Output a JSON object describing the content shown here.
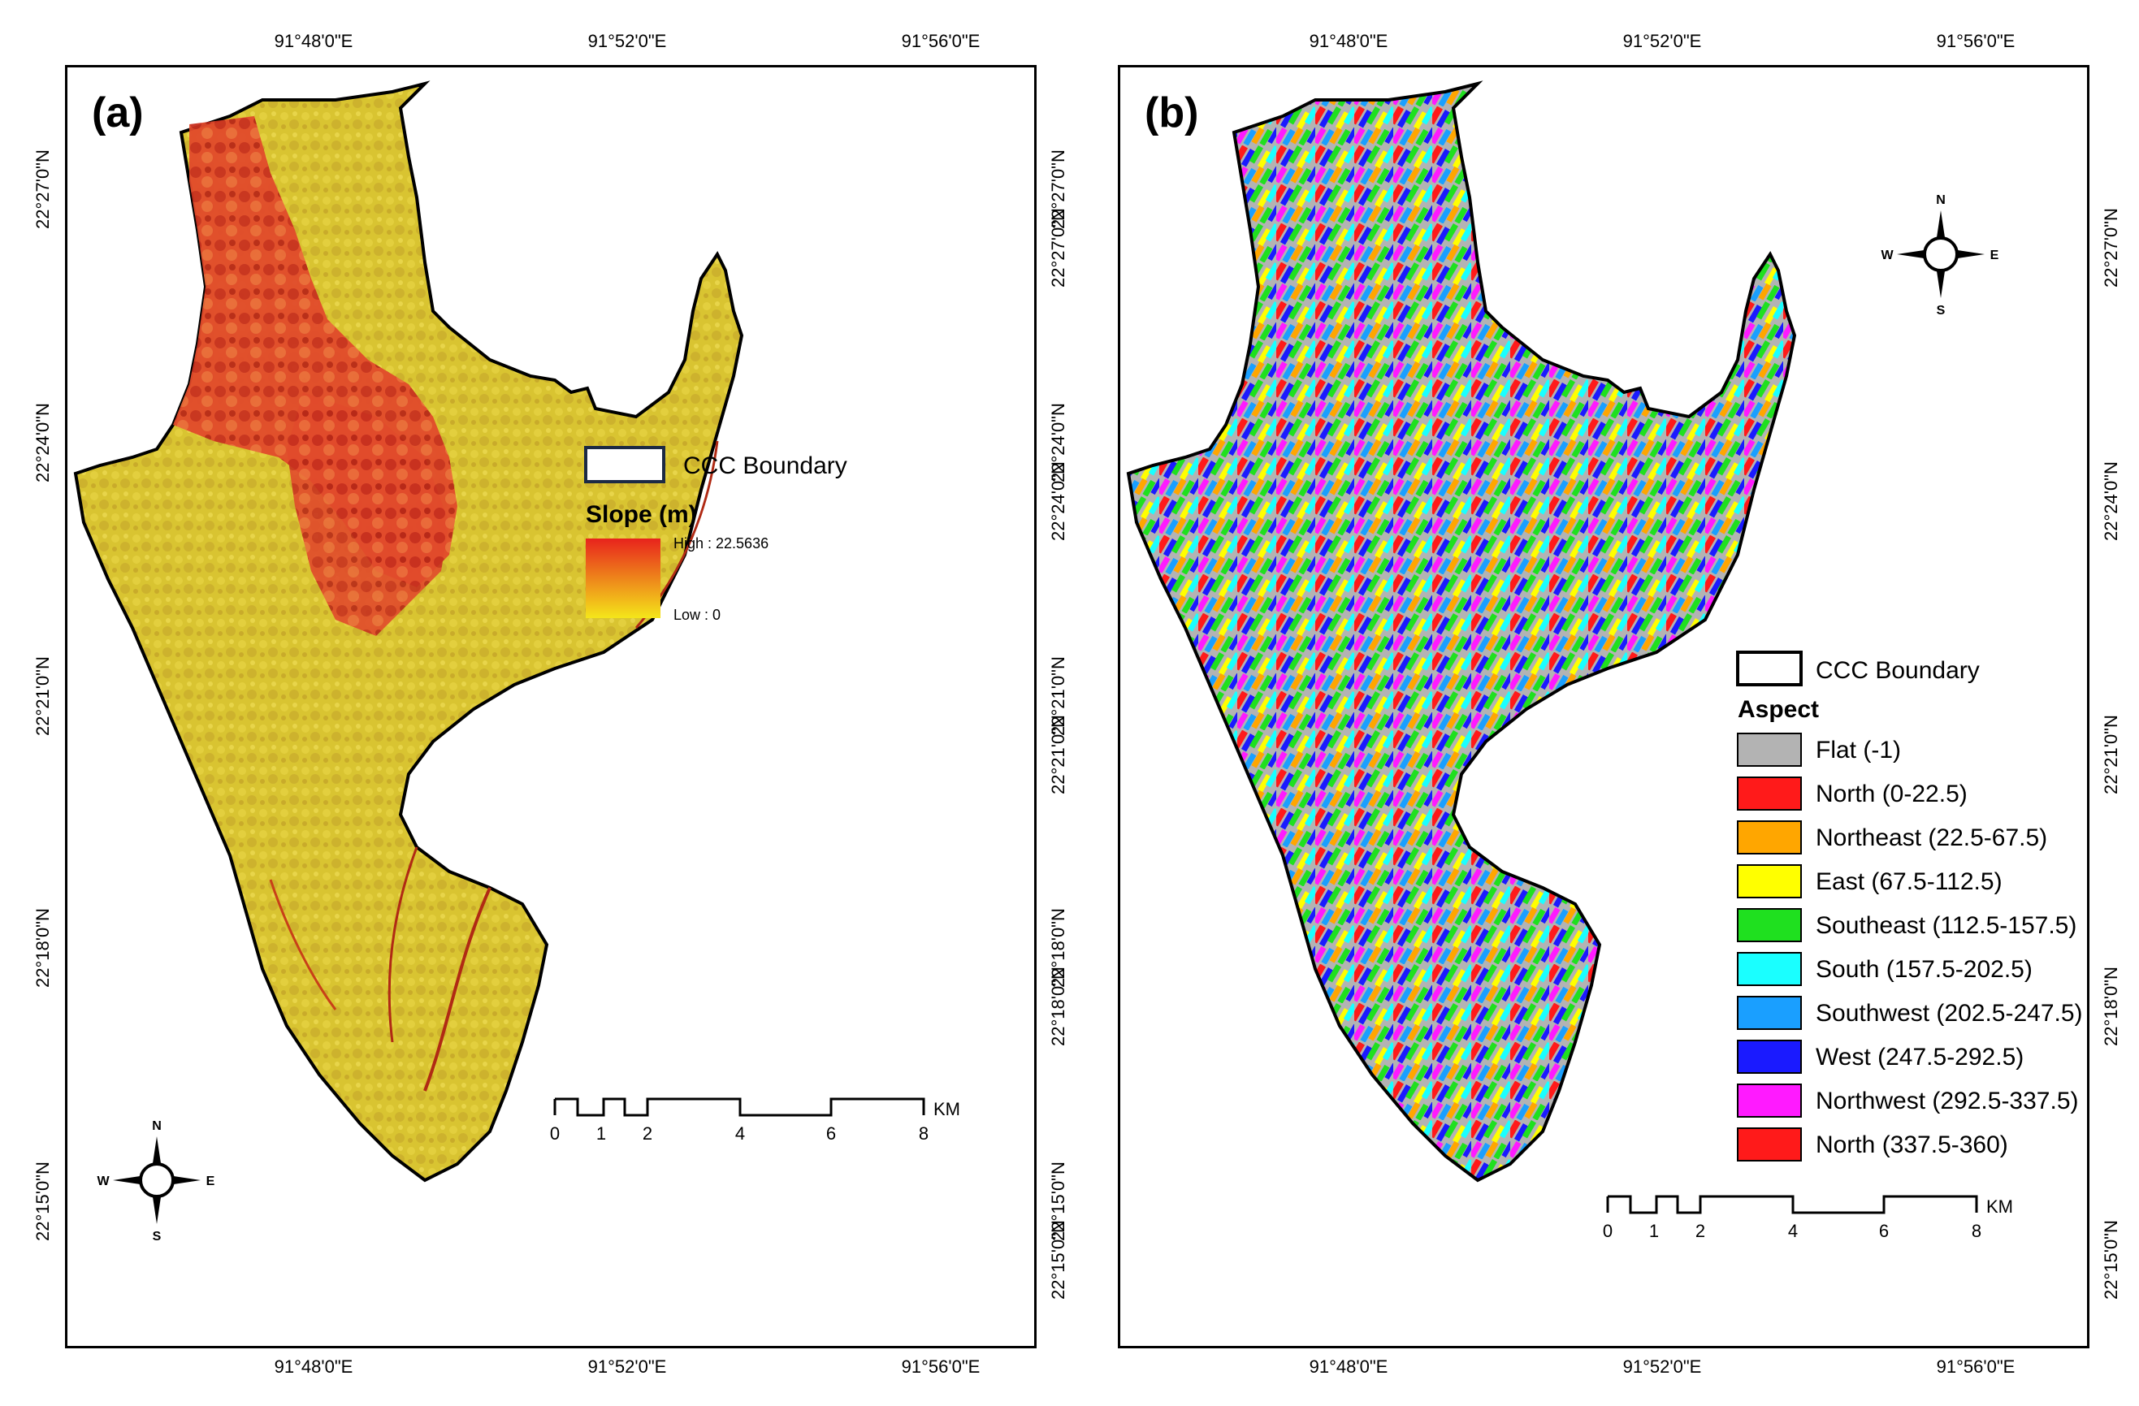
{
  "panel_a": {
    "label": "(a)",
    "top_ticks": [
      "91°48'0\"E",
      "91°52'0\"E",
      "91°56'0\"E"
    ],
    "bottom_ticks": [
      "91°48'0\"E",
      "91°52'0\"E",
      "91°56'0\"E"
    ],
    "left_ticks": [
      "22°27'0\"N",
      "22°24'0\"N",
      "22°21'0\"N",
      "22°18'0\"N",
      "22°15'0\"N"
    ],
    "right_ticks": [
      "22°27'0\"N",
      "22°24'0\"N",
      "22°21'0\"N",
      "22°18'0\"N",
      "22°15'0\"N"
    ],
    "legend": {
      "boundary_label": "CCC Boundary",
      "title": "Slope (m)",
      "high_label": "High : 22.5636",
      "low_label": "Low : 0",
      "gradient_high_color": "#e8231c",
      "gradient_low_color": "#f4e61a"
    },
    "compass": {
      "n": "N",
      "s": "S",
      "e": "E",
      "w": "W"
    },
    "scale": {
      "labels": [
        "0",
        "1",
        "2",
        "4",
        "6",
        "8"
      ],
      "unit": "KM"
    }
  },
  "panel_b": {
    "label": "(b)",
    "top_ticks": [
      "91°48'0\"E",
      "91°52'0\"E",
      "91°56'0\"E"
    ],
    "bottom_ticks": [
      "91°48'0\"E",
      "91°52'0\"E",
      "91°56'0\"E"
    ],
    "left_ticks": [
      "22°27'0\"N",
      "22°24'0\"N",
      "22°21'0\"N",
      "22°18'0\"N",
      "22°15'0\"N"
    ],
    "right_ticks": [
      "22°27'0\"N",
      "22°24'0\"N",
      "22°21'0\"N",
      "22°18'0\"N",
      "22°15'0\"N"
    ],
    "legend": {
      "boundary_label": "CCC Boundary",
      "title": "Aspect",
      "classes": [
        {
          "label": "Flat (-1)",
          "color": "#b3b3b3"
        },
        {
          "label": "North (0-22.5)",
          "color": "#ff1a1a"
        },
        {
          "label": "Northeast (22.5-67.5)",
          "color": "#ffa600"
        },
        {
          "label": "East (67.5-112.5)",
          "color": "#ffff00"
        },
        {
          "label": "Southeast (112.5-157.5)",
          "color": "#1fe01f"
        },
        {
          "label": "South (157.5-202.5)",
          "color": "#1affff"
        },
        {
          "label": "Southwest (202.5-247.5)",
          "color": "#1a9fff"
        },
        {
          "label": "West (247.5-292.5)",
          "color": "#1a1aff"
        },
        {
          "label": "Northwest (292.5-337.5)",
          "color": "#ff1aff"
        },
        {
          "label": "North (337.5-360)",
          "color": "#ff1a1a"
        }
      ]
    },
    "compass": {
      "n": "N",
      "s": "S",
      "e": "E",
      "w": "W"
    },
    "scale": {
      "labels": [
        "0",
        "1",
        "2",
        "4",
        "6",
        "8"
      ],
      "unit": "KM"
    }
  }
}
